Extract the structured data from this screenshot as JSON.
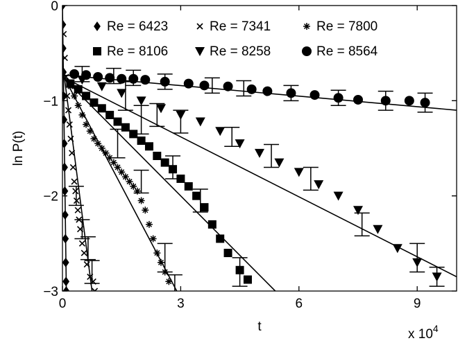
{
  "chart_data": {
    "type": "scatter",
    "xlabel": "t",
    "ylabel": "ln P(t)",
    "x_multiplier_label": "x 10",
    "x_multiplier_exp": "4",
    "xlim": [
      0,
      100000
    ],
    "ylim": [
      -3,
      0
    ],
    "x_ticks": [
      0,
      30000,
      60000,
      90000
    ],
    "x_tick_labels": [
      "0",
      "3",
      "6",
      "9"
    ],
    "y_ticks": [
      0,
      -1,
      -2,
      -3
    ],
    "y_tick_labels": [
      "0",
      "−1",
      "−2",
      "−3"
    ],
    "grid": false,
    "legend_position": "top-right",
    "series": [
      {
        "name": "Re = 6423",
        "marker": "diamond",
        "points": [
          [
            0,
            0
          ],
          [
            80,
            -0.2
          ],
          [
            150,
            -0.45
          ],
          [
            230,
            -0.7
          ],
          [
            300,
            -0.95
          ],
          [
            380,
            -1.2
          ],
          [
            450,
            -1.45
          ],
          [
            530,
            -1.7
          ],
          [
            600,
            -1.95
          ],
          [
            680,
            -2.2
          ],
          [
            750,
            -2.45
          ],
          [
            830,
            -2.7
          ],
          [
            900,
            -2.9
          ],
          [
            950,
            -3.0
          ]
        ],
        "fit": [
          [
            0,
            0
          ],
          [
            1000,
            -3.05
          ]
        ]
      },
      {
        "name": "Re = 7341",
        "marker": "cross",
        "points": [
          [
            300,
            -0.3
          ],
          [
            600,
            -0.55
          ],
          [
            900,
            -0.75
          ],
          [
            1200,
            -0.95
          ],
          [
            1500,
            -1.1
          ],
          [
            1800,
            -1.25
          ],
          [
            2100,
            -1.4
          ],
          [
            2400,
            -1.55
          ],
          [
            2700,
            -1.7
          ],
          [
            3000,
            -1.85
          ],
          [
            3300,
            -1.95
          ],
          [
            3600,
            -2.05
          ],
          [
            3900,
            -2.15
          ],
          [
            4200,
            -2.25
          ],
          [
            4500,
            -2.35
          ],
          [
            5000,
            -2.5
          ],
          [
            5500,
            -2.6
          ],
          [
            6200,
            -2.72
          ],
          [
            7000,
            -2.85
          ],
          [
            7800,
            -2.9
          ],
          [
            8200,
            -3.0
          ]
        ],
        "fit": [
          [
            0,
            -0.6
          ],
          [
            7500,
            -3.0
          ]
        ],
        "error_bars": [
          [
            3500,
            -2.0,
            0.1
          ],
          [
            5000,
            -2.35,
            0.1
          ],
          [
            6500,
            -2.55,
            0.12
          ],
          [
            7500,
            -2.8,
            0.12
          ]
        ]
      },
      {
        "name": "Re = 7800",
        "marker": "asterisk",
        "points": [
          [
            2000,
            -0.85
          ],
          [
            3000,
            -0.95
          ],
          [
            4000,
            -1.05
          ],
          [
            5000,
            -1.15
          ],
          [
            6000,
            -1.25
          ],
          [
            7000,
            -1.32
          ],
          [
            8000,
            -1.4
          ],
          [
            9000,
            -1.45
          ],
          [
            10000,
            -1.5
          ],
          [
            11000,
            -1.55
          ],
          [
            12000,
            -1.6
          ],
          [
            13000,
            -1.65
          ],
          [
            14000,
            -1.7
          ],
          [
            15000,
            -1.75
          ],
          [
            16000,
            -1.8
          ],
          [
            17000,
            -1.85
          ],
          [
            18000,
            -1.9
          ],
          [
            19000,
            -1.95
          ],
          [
            20000,
            -2.05
          ],
          [
            21000,
            -2.15
          ],
          [
            22000,
            -2.3
          ],
          [
            23000,
            -2.45
          ],
          [
            24000,
            -2.6
          ],
          [
            25000,
            -2.7
          ],
          [
            26000,
            -2.8
          ],
          [
            27000,
            -2.9
          ]
        ],
        "fit": [
          [
            0,
            -0.72
          ],
          [
            29000,
            -3.0
          ]
        ],
        "error_bars": [
          [
            14000,
            -1.45,
            0.15
          ],
          [
            20000,
            -1.85,
            0.12
          ],
          [
            26000,
            -2.65,
            0.15
          ],
          [
            28500,
            -2.95,
            0.12
          ]
        ]
      },
      {
        "name": "Re = 8106",
        "marker": "square",
        "points": [
          [
            2000,
            -0.82
          ],
          [
            4000,
            -0.88
          ],
          [
            6000,
            -0.95
          ],
          [
            8000,
            -1.02
          ],
          [
            10000,
            -1.08
          ],
          [
            12000,
            -1.15
          ],
          [
            14000,
            -1.22
          ],
          [
            16000,
            -1.28
          ],
          [
            18000,
            -1.35
          ],
          [
            20000,
            -1.42
          ],
          [
            22000,
            -1.48
          ],
          [
            24000,
            -1.58
          ],
          [
            26000,
            -1.65
          ],
          [
            28000,
            -1.72
          ],
          [
            30000,
            -1.82
          ],
          [
            32000,
            -1.9
          ],
          [
            34000,
            -2.0
          ],
          [
            36000,
            -2.12
          ],
          [
            38000,
            -2.3
          ],
          [
            40000,
            -2.45
          ],
          [
            42000,
            -2.6
          ],
          [
            45000,
            -2.78
          ],
          [
            47000,
            -2.88
          ]
        ],
        "fit": [
          [
            0,
            -0.75
          ],
          [
            54000,
            -3.0
          ]
        ],
        "error_bars": [
          [
            20000,
            -1.2,
            0.15
          ],
          [
            28000,
            -1.7,
            0.12
          ],
          [
            35000,
            -2.05,
            0.12
          ],
          [
            45000,
            -2.8,
            0.15
          ]
        ]
      },
      {
        "name": "Re = 8258",
        "marker": "triangle-down",
        "points": [
          [
            5000,
            -0.78
          ],
          [
            10000,
            -0.85
          ],
          [
            15000,
            -0.92
          ],
          [
            20000,
            -1.0
          ],
          [
            25000,
            -1.08
          ],
          [
            30000,
            -1.15
          ],
          [
            35000,
            -1.22
          ],
          [
            40000,
            -1.32
          ],
          [
            45000,
            -1.45
          ],
          [
            50000,
            -1.55
          ],
          [
            55000,
            -1.65
          ],
          [
            60000,
            -1.75
          ],
          [
            65000,
            -1.88
          ],
          [
            70000,
            -2.0
          ],
          [
            75000,
            -2.15
          ],
          [
            80000,
            -2.35
          ],
          [
            85000,
            -2.55
          ],
          [
            90000,
            -2.7
          ],
          [
            95000,
            -2.85
          ]
        ],
        "fit": [
          [
            0,
            -0.75
          ],
          [
            100000,
            -2.85
          ]
        ],
        "error_bars": [
          [
            16000,
            -0.95,
            0.15
          ],
          [
            24000,
            -1.15,
            0.12
          ],
          [
            30000,
            -1.22,
            0.12
          ],
          [
            43000,
            -1.38,
            0.1
          ],
          [
            53000,
            -1.58,
            0.12
          ],
          [
            63000,
            -1.82,
            0.12
          ],
          [
            76000,
            -2.3,
            0.12
          ],
          [
            90000,
            -2.65,
            0.15
          ],
          [
            95000,
            -2.85,
            0.1
          ]
        ]
      },
      {
        "name": "Re = 8564",
        "marker": "circle",
        "points": [
          [
            3000,
            -0.72
          ],
          [
            6000,
            -0.73
          ],
          [
            9000,
            -0.75
          ],
          [
            12000,
            -0.76
          ],
          [
            15000,
            -0.77
          ],
          [
            18000,
            -0.77
          ],
          [
            21000,
            -0.78
          ],
          [
            26000,
            -0.8
          ],
          [
            32000,
            -0.82
          ],
          [
            36000,
            -0.84
          ],
          [
            42000,
            -0.85
          ],
          [
            48000,
            -0.88
          ],
          [
            52000,
            -0.9
          ],
          [
            58000,
            -0.92
          ],
          [
            64000,
            -0.94
          ],
          [
            70000,
            -0.97
          ],
          [
            75000,
            -0.99
          ],
          [
            82000,
            -1.0
          ],
          [
            88000,
            -1.0
          ],
          [
            92000,
            -1.02
          ]
        ],
        "fit": [
          [
            0,
            -0.73
          ],
          [
            100000,
            -1.1
          ]
        ],
        "error_bars": [
          [
            5000,
            -0.72,
            0.08
          ],
          [
            13000,
            -0.74,
            0.08
          ],
          [
            18000,
            -0.76,
            0.08
          ],
          [
            26000,
            -0.8,
            0.08
          ],
          [
            38000,
            -0.84,
            0.08
          ],
          [
            46000,
            -0.87,
            0.08
          ],
          [
            58000,
            -0.92,
            0.08
          ],
          [
            70000,
            -0.97,
            0.08
          ],
          [
            82000,
            -1.0,
            0.1
          ],
          [
            92000,
            -1.02,
            0.1
          ]
        ]
      }
    ]
  }
}
